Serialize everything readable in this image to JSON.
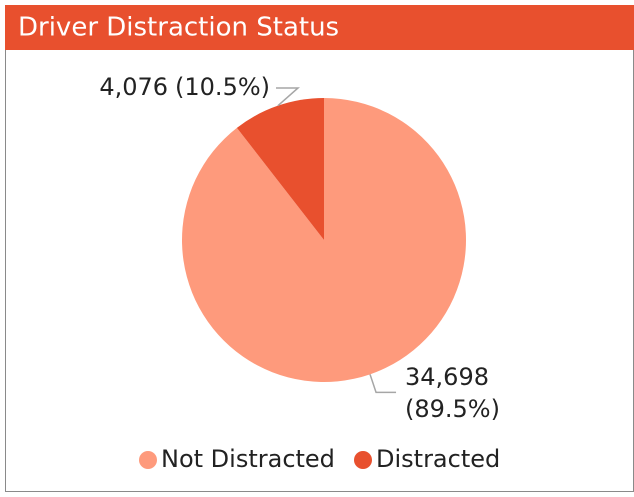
{
  "chart_data": {
    "type": "pie",
    "title": "Driver Distraction Status",
    "categories": [
      "Not Distracted",
      "Distracted"
    ],
    "values": [
      34698,
      4076
    ],
    "value_labels": [
      "34,698",
      "4,076"
    ],
    "percent_labels": [
      "(89.5%)",
      "(10.5%)"
    ],
    "colors": [
      "#fe9a7c",
      "#e8502e"
    ],
    "legend": "bottom"
  }
}
